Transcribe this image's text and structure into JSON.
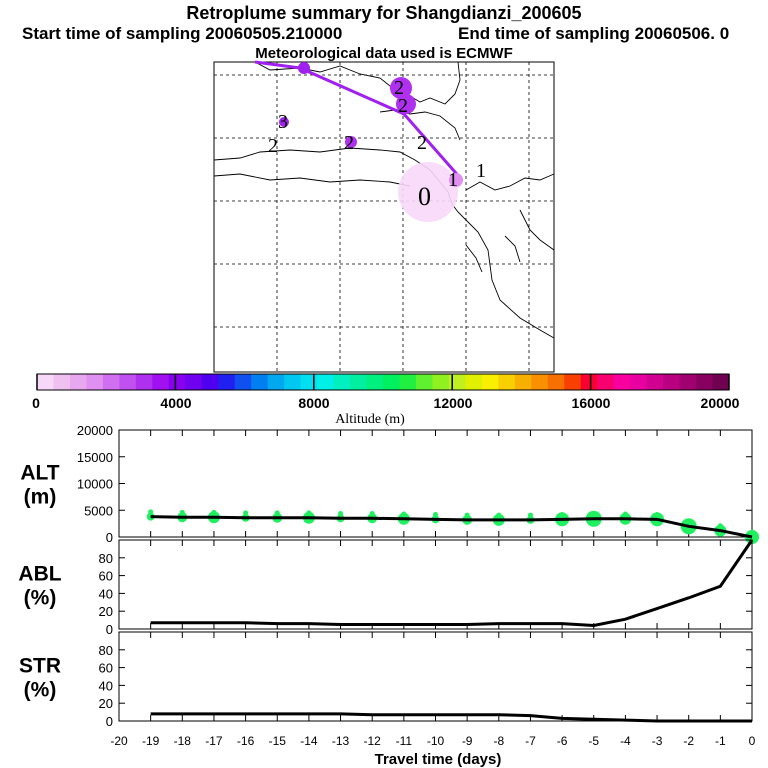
{
  "header": {
    "title": "Retroplume summary for Shangdianzi_200605",
    "start": "Start time of sampling 20060505.210000",
    "end": "End time of sampling 20060506.     0",
    "met": "Meteorological data used is ECMWF"
  },
  "colorbar": {
    "tick_labels": [
      "0",
      "4000",
      "8000",
      "12000",
      "16000",
      "20000"
    ],
    "label": "Altitude (m)",
    "colors": [
      "#f8d8f8",
      "#f0c0f0",
      "#e8a8f0",
      "#e090f0",
      "#d070f0",
      "#c050f0",
      "#b030f0",
      "#a010f0",
      "#8800f0",
      "#7000f0",
      "#5000f0",
      "#2020f0",
      "#1050f0",
      "#0080f0",
      "#00a8f0",
      "#00c8f0",
      "#00e0f0",
      "#00f0e8",
      "#00f0c0",
      "#00f0a0",
      "#00f080",
      "#00f060",
      "#20f040",
      "#60f030",
      "#90f020",
      "#c0f020",
      "#e0f000",
      "#f8f000",
      "#f8d000",
      "#f8b000",
      "#f89000",
      "#f87000",
      "#f84000",
      "#f80030",
      "#f80070",
      "#f800a0",
      "#e800a0",
      "#d00090",
      "#b80080",
      "#a00070",
      "#880060",
      "#700050"
    ]
  },
  "map": {
    "plume_color": "#a020f0",
    "labels": [
      "2",
      "2",
      "3",
      "2",
      "2",
      "2",
      "1",
      "1",
      "0"
    ]
  },
  "chart_data": [
    {
      "type": "line",
      "title": "ALT",
      "ylabel": "ALT\n(m)",
      "ylabel_lines": [
        "ALT",
        "(m)"
      ],
      "x": [
        -19,
        -18,
        -17,
        -16,
        -15,
        -14,
        -13,
        -12,
        -11,
        -10,
        -9,
        -8,
        -7,
        -6,
        -5,
        -4,
        -3,
        -2,
        -1,
        0
      ],
      "y": [
        3800,
        3700,
        3700,
        3600,
        3600,
        3600,
        3500,
        3500,
        3400,
        3300,
        3200,
        3200,
        3200,
        3300,
        3400,
        3400,
        3300,
        2000,
        1200,
        0
      ],
      "ylim": [
        0,
        20000
      ],
      "yticks": [
        "0",
        "5000",
        "10000",
        "15000",
        "20000"
      ],
      "scatter_color": "#20f060"
    },
    {
      "type": "line",
      "title": "ABL",
      "ylabel_lines": [
        "ABL",
        "(%)"
      ],
      "x": [
        -19,
        -18,
        -17,
        -16,
        -15,
        -14,
        -13,
        -12,
        -11,
        -10,
        -9,
        -8,
        -7,
        -6,
        -5,
        -4,
        -3,
        -2,
        -1,
        0
      ],
      "y": [
        7,
        7,
        7,
        7,
        6,
        6,
        5,
        5,
        5,
        5,
        5,
        6,
        6,
        6,
        4,
        11,
        23,
        35,
        48,
        100
      ],
      "ylim": [
        0,
        100
      ],
      "yticks": [
        "0",
        "20",
        "40",
        "60",
        "80"
      ]
    },
    {
      "type": "line",
      "title": "STR",
      "ylabel_lines": [
        "STR",
        "(%)"
      ],
      "x": [
        -19,
        -18,
        -17,
        -16,
        -15,
        -14,
        -13,
        -12,
        -11,
        -10,
        -9,
        -8,
        -7,
        -6,
        -5,
        -4,
        -3,
        -2,
        -1,
        0
      ],
      "y": [
        8,
        8,
        8,
        8,
        8,
        8,
        8,
        7,
        7,
        7,
        7,
        7,
        6,
        3,
        2,
        1,
        0,
        0,
        0,
        0
      ],
      "ylim": [
        0,
        100
      ],
      "yticks": [
        "0",
        "20",
        "40",
        "60",
        "80"
      ]
    }
  ],
  "xaxis": {
    "tick_labels": [
      "-20",
      "-19",
      "-18",
      "-17",
      "-16",
      "-15",
      "-14",
      "-13",
      "-12",
      "-11",
      "-10",
      "-9",
      "-8",
      "-7",
      "-6",
      "-5",
      "-4",
      "-3",
      "-2",
      "-1",
      "0"
    ],
    "label": "Travel time (days)"
  }
}
